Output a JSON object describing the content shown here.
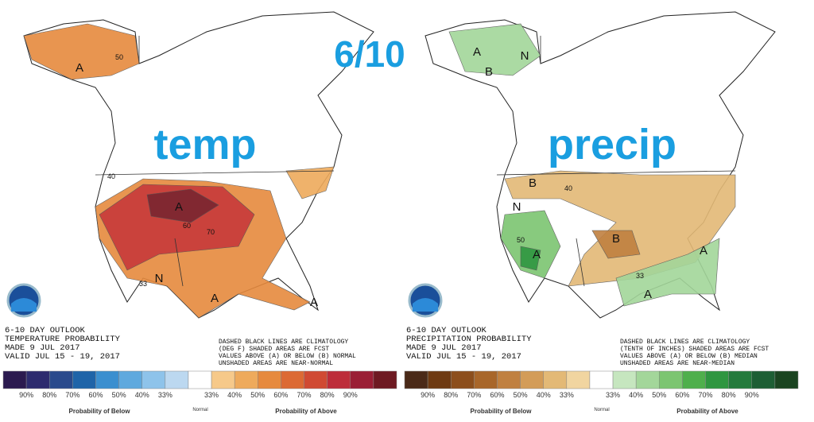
{
  "header": {
    "period": "6/10"
  },
  "panels": [
    {
      "overlay": "temp",
      "lines": [
        "6-10 DAY OUTLOOK",
        "TEMPERATURE PROBABILITY",
        "MADE  9 JUL 2017",
        "VALID  JUL 15 - 19, 2017"
      ],
      "notes": [
        "DASHED BLACK LINES ARE CLIMATOLOGY",
        "(DEG F) SHADED AREAS ARE FCST",
        "VALUES ABOVE (A) OR BELOW (B) NORMAL",
        "UNSHADED AREAS ARE NEAR-NORMAL"
      ],
      "map_labels": [
        "A",
        "A",
        "N",
        "A",
        "A",
        "50",
        "60",
        "40",
        "70",
        "33"
      ],
      "legend": {
        "below_labels": [
          "90%",
          "80%",
          "70%",
          "60%",
          "50%",
          "40%",
          "33%"
        ],
        "above_labels": [
          "33%",
          "40%",
          "50%",
          "60%",
          "70%",
          "80%",
          "90%"
        ],
        "below_colors": [
          "#2b1a4f",
          "#2d2b6e",
          "#2a4a8c",
          "#1f64a8",
          "#3b8fcf",
          "#5fa9de",
          "#8ec3ea",
          "#bcd8f0"
        ],
        "above_colors": [
          "#f6c98a",
          "#eeaa5c",
          "#e68a3e",
          "#dc6a34",
          "#d04a33",
          "#bd2d3a",
          "#9a1f35",
          "#6e1a22"
        ],
        "below_title": "Probability of Below",
        "normal_title": "Normal",
        "above_title": "Probability of Above"
      }
    },
    {
      "overlay": "precip",
      "lines": [
        "6-10 DAY OUTLOOK",
        "PRECIPITATION PROBABILITY",
        "MADE  9 JUL 2017",
        "VALID  JUL 15 - 19, 2017"
      ],
      "notes": [
        "DASHED BLACK LINES ARE CLIMATOLOGY",
        "(TENTH OF INCHES) SHADED AREAS ARE FCST",
        "VALUES ABOVE (A) OR BELOW (B) MEDIAN",
        "UNSHADED AREAS ARE NEAR-MEDIAN"
      ],
      "map_labels": [
        "A",
        "N",
        "B",
        "B",
        "N",
        "A",
        "A",
        "A",
        "B",
        "50",
        "40",
        "33"
      ],
      "legend": {
        "below_labels": [
          "90%",
          "80%",
          "70%",
          "60%",
          "50%",
          "40%",
          "33%"
        ],
        "above_labels": [
          "33%",
          "40%",
          "50%",
          "60%",
          "70%",
          "80%",
          "90%"
        ],
        "below_colors": [
          "#4a2a18",
          "#6e3a12",
          "#8c4e1c",
          "#a8662a",
          "#c08040",
          "#d39c58",
          "#e3b976",
          "#f1d5a0"
        ],
        "above_colors": [
          "#c6e6bf",
          "#a3d69a",
          "#7cc571",
          "#4faf4c",
          "#2f9640",
          "#247a3c",
          "#1d5e34",
          "#1a4420"
        ],
        "below_title": "Probability of Below",
        "normal_title": "Normal",
        "above_title": "Probability of Above"
      }
    }
  ]
}
